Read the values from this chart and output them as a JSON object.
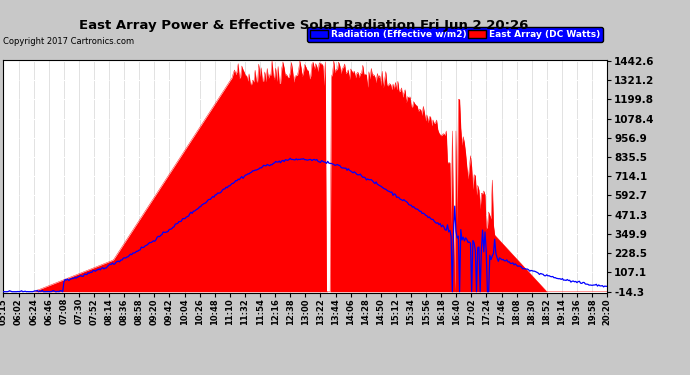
{
  "title": "East Array Power & Effective Solar Radiation Fri Jun 2 20:26",
  "copyright": "Copyright 2017 Cartronics.com",
  "legend_labels": [
    "Radiation (Effective w/m2)",
    "East Array (DC Watts)"
  ],
  "y_ticks": [
    -14.3,
    107.1,
    228.5,
    349.9,
    471.3,
    592.7,
    714.1,
    835.5,
    956.9,
    1078.4,
    1199.8,
    1321.2,
    1442.6
  ],
  "y_min": -14.3,
  "y_max": 1442.6,
  "background_color": "#c8c8c8",
  "plot_bg_color": "#ffffff",
  "grid_color": "#aaaaaa",
  "x_labels": [
    "05:15",
    "06:02",
    "06:24",
    "06:46",
    "07:08",
    "07:30",
    "07:52",
    "08:14",
    "08:36",
    "08:58",
    "09:20",
    "09:42",
    "10:04",
    "10:26",
    "10:48",
    "11:10",
    "11:32",
    "11:54",
    "12:16",
    "12:38",
    "13:00",
    "13:22",
    "13:44",
    "14:06",
    "14:28",
    "14:50",
    "15:12",
    "15:34",
    "15:56",
    "16:18",
    "16:40",
    "17:02",
    "17:24",
    "17:46",
    "18:08",
    "18:30",
    "18:52",
    "19:14",
    "19:36",
    "19:58",
    "20:20"
  ]
}
